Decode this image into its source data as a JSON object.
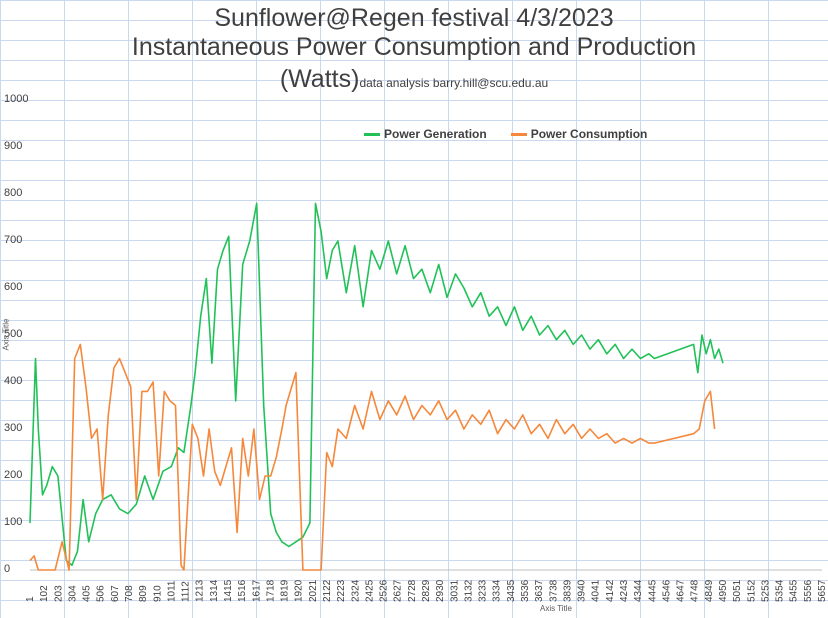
{
  "title": {
    "line1": "Sunflower@Regen festival 4/3/2023",
    "line2": "Instantaneous Power Consumption and Production",
    "line3": "(Watts)",
    "credit": "data analysis barry.hill@scu.edu.au"
  },
  "colors": {
    "generation": "#22c158",
    "consumption": "#f5883a",
    "grid": "#c9d8ee",
    "axis": "#404040"
  },
  "chart_data": {
    "type": "line",
    "title": "Sunflower@Regen festival 4/3/2023 Instantaneous Power Consumption and Production (Watts)",
    "xlabel": "Axis Title",
    "ylabel": "Axis Title",
    "ylim": [
      0,
      1000
    ],
    "yticks": [
      0,
      100,
      200,
      300,
      400,
      500,
      600,
      700,
      800,
      900,
      1000
    ],
    "xlim": [
      1,
      5657
    ],
    "xticks": [
      1,
      102,
      203,
      304,
      405,
      506,
      607,
      708,
      809,
      910,
      1011,
      1112,
      1213,
      1314,
      1415,
      1516,
      1617,
      1718,
      1819,
      1920,
      2021,
      2122,
      2223,
      2324,
      2425,
      2526,
      2627,
      2728,
      2829,
      2930,
      3031,
      3132,
      3233,
      3334,
      3435,
      3536,
      3637,
      3738,
      3839,
      3940,
      4041,
      4142,
      4243,
      4344,
      4445,
      4546,
      4647,
      4748,
      4849,
      4950,
      5051,
      5152,
      5253,
      5354,
      5455,
      5556,
      5657
    ],
    "grid": true,
    "legend": "top-center",
    "series": [
      {
        "name": "Power Generation",
        "x": [
          1,
          40,
          60,
          90,
          120,
          160,
          200,
          260,
          300,
          340,
          380,
          420,
          470,
          520,
          580,
          640,
          700,
          760,
          820,
          880,
          950,
          1010,
          1060,
          1100,
          1150,
          1180,
          1220,
          1260,
          1300,
          1340,
          1380,
          1420,
          1470,
          1520,
          1570,
          1620,
          1670,
          1720,
          1760,
          1800,
          1850,
          1900,
          1950,
          2000,
          2040,
          2080,
          2120,
          2160,
          2200,
          2260,
          2320,
          2380,
          2440,
          2500,
          2560,
          2620,
          2680,
          2740,
          2800,
          2860,
          2920,
          2980,
          3040,
          3100,
          3160,
          3220,
          3280,
          3340,
          3400,
          3460,
          3520,
          3580,
          3640,
          3700,
          3760,
          3820,
          3880,
          3940,
          4000,
          4060,
          4120,
          4180,
          4240,
          4300,
          4360,
          4420,
          4460,
          4740,
          4770,
          4800,
          4830,
          4860,
          4890,
          4920,
          4950
        ],
        "y": [
          100,
          450,
          300,
          160,
          180,
          220,
          200,
          20,
          10,
          40,
          150,
          60,
          120,
          150,
          160,
          130,
          120,
          140,
          200,
          150,
          210,
          220,
          260,
          250,
          350,
          420,
          540,
          620,
          440,
          640,
          680,
          710,
          360,
          650,
          700,
          780,
          350,
          120,
          80,
          60,
          50,
          60,
          70,
          100,
          780,
          720,
          620,
          680,
          700,
          590,
          690,
          560,
          680,
          640,
          700,
          630,
          690,
          620,
          640,
          590,
          650,
          580,
          630,
          600,
          560,
          590,
          540,
          560,
          520,
          560,
          510,
          540,
          500,
          520,
          490,
          510,
          480,
          500,
          470,
          490,
          460,
          480,
          450,
          470,
          450,
          460,
          450,
          480,
          420,
          500,
          460,
          490,
          450,
          470,
          440
        ]
      },
      {
        "name": "Power Consumption",
        "x": [
          1,
          30,
          60,
          120,
          180,
          230,
          280,
          320,
          360,
          400,
          440,
          480,
          520,
          560,
          600,
          640,
          680,
          720,
          760,
          800,
          840,
          880,
          920,
          960,
          1000,
          1040,
          1080,
          1100,
          1160,
          1200,
          1240,
          1280,
          1320,
          1360,
          1400,
          1440,
          1480,
          1520,
          1560,
          1600,
          1640,
          1680,
          1720,
          1760,
          1800,
          1830,
          1860,
          1880,
          1900,
          1920,
          1950,
          1980,
          2010,
          2040,
          2080,
          2120,
          2160,
          2200,
          2260,
          2320,
          2380,
          2440,
          2500,
          2560,
          2620,
          2680,
          2740,
          2800,
          2860,
          2920,
          2980,
          3040,
          3100,
          3160,
          3220,
          3280,
          3340,
          3400,
          3460,
          3520,
          3580,
          3640,
          3700,
          3760,
          3820,
          3880,
          3940,
          4000,
          4060,
          4120,
          4180,
          4240,
          4300,
          4360,
          4420,
          4460,
          4740,
          4780,
          4820,
          4860,
          4890
        ],
        "y": [
          20,
          30,
          0,
          0,
          0,
          60,
          0,
          450,
          480,
          390,
          280,
          300,
          150,
          330,
          430,
          450,
          420,
          390,
          150,
          380,
          380,
          400,
          200,
          380,
          360,
          350,
          10,
          0,
          310,
          280,
          200,
          300,
          210,
          180,
          220,
          260,
          80,
          280,
          200,
          300,
          150,
          200,
          200,
          240,
          300,
          350,
          380,
          400,
          420,
          250,
          0,
          0,
          0,
          0,
          0,
          250,
          220,
          300,
          280,
          350,
          300,
          380,
          320,
          360,
          330,
          370,
          320,
          350,
          330,
          360,
          320,
          340,
          300,
          330,
          310,
          340,
          290,
          320,
          300,
          330,
          290,
          310,
          280,
          320,
          290,
          310,
          280,
          300,
          280,
          290,
          270,
          280,
          270,
          280,
          270,
          270,
          290,
          300,
          360,
          380,
          300
        ]
      }
    ]
  }
}
